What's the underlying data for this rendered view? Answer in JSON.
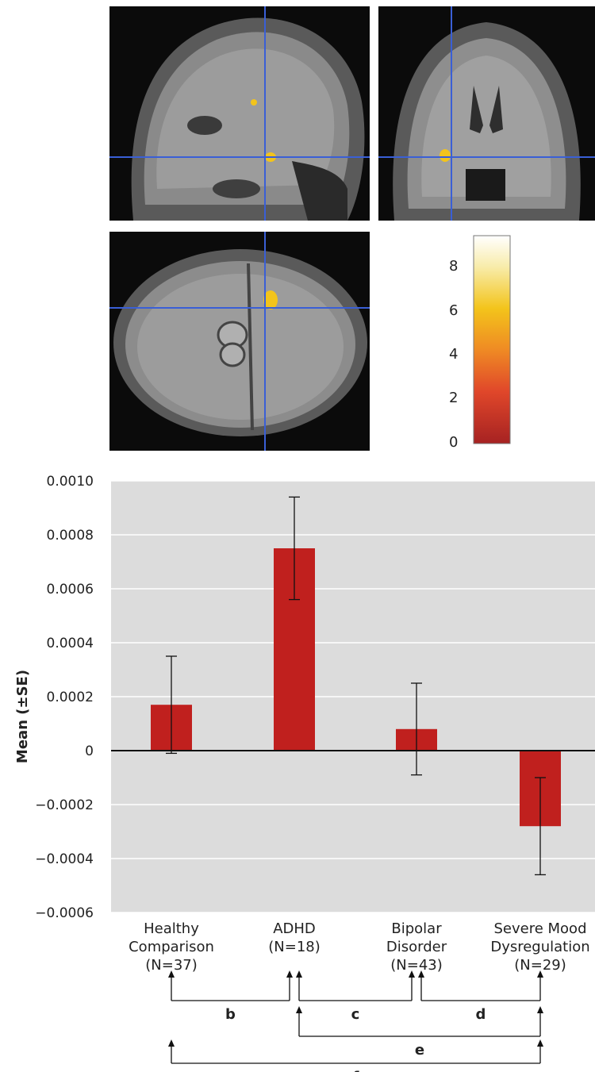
{
  "colors": {
    "bar": "#c0201e",
    "plot_background": "#dcdcdc",
    "crosshair": "#3a5fd6",
    "activation": "#f3c41b"
  },
  "colorbar": {
    "ticks": [
      "8",
      "6",
      "4",
      "2",
      "0"
    ],
    "gradient": [
      "#ffffff",
      "#f6e27a",
      "#f3c41b",
      "#ef8a24",
      "#e0472a",
      "#b52424"
    ]
  },
  "chart_data": {
    "type": "bar",
    "ylabel": "Mean (±SE)",
    "ylim": [
      -0.0006,
      0.001
    ],
    "yticks": [
      "0.0010",
      "0.0008",
      "0.0006",
      "0.0004",
      "0.0002",
      "0",
      "−0.0002",
      "−0.0004",
      "−0.0006"
    ],
    "ytick_values": [
      0.001,
      0.0008,
      0.0006,
      0.0004,
      0.0002,
      0,
      -0.0002,
      -0.0004,
      -0.0006
    ],
    "grid": true,
    "categories": [
      {
        "lines": [
          "Healthy",
          "Comparison",
          "(N=37)"
        ]
      },
      {
        "lines": [
          "ADHD",
          "(N=18)"
        ]
      },
      {
        "lines": [
          "Bipolar",
          "Disorder",
          "(N=43)"
        ]
      },
      {
        "lines": [
          "Severe Mood",
          "Dysregulation",
          "(N=29)"
        ]
      }
    ],
    "values": [
      0.00017,
      0.00075,
      8e-05,
      -0.00028
    ],
    "se": [
      0.00018,
      0.00019,
      0.00017,
      0.00018
    ],
    "comparisons": [
      {
        "label": "b",
        "from": 0,
        "to": 1,
        "row": 1
      },
      {
        "label": "c",
        "from": 1,
        "to": 2,
        "row": 1
      },
      {
        "label": "d",
        "from": 2,
        "to": 3,
        "row": 1
      },
      {
        "label": "e",
        "from": 1,
        "to": 3,
        "row": 2
      },
      {
        "label": "f",
        "from": 0,
        "to": 3,
        "row": 3
      }
    ]
  }
}
